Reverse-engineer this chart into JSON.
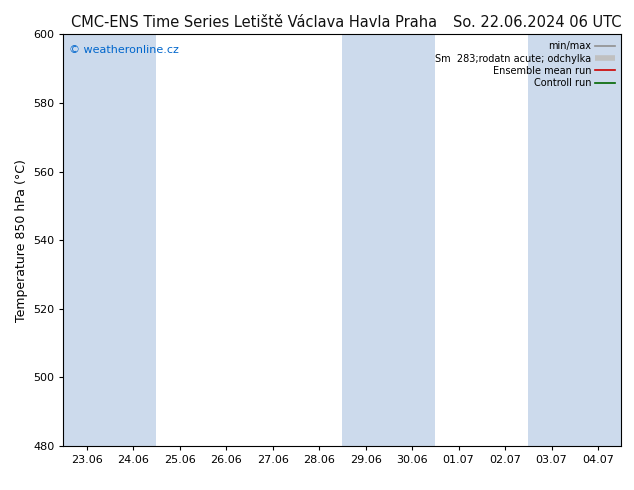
{
  "title": "CMC-ENS Time Series Letiště Václava Havla Praha",
  "date_label": "So. 22.06.2024 06 UTC",
  "ylabel": "Temperature 850 hPa (°C)",
  "ylim": [
    480,
    600
  ],
  "yticks": [
    480,
    500,
    520,
    540,
    560,
    580,
    600
  ],
  "x_labels": [
    "23.06",
    "24.06",
    "25.06",
    "26.06",
    "27.06",
    "28.06",
    "29.06",
    "30.06",
    "01.07",
    "02.07",
    "03.07",
    "04.07"
  ],
  "copyright": "© weatheronline.cz",
  "legend_entries": [
    "min/max",
    "Sm  283;rodatn acute; odchylka",
    "Ensemble mean run",
    "Controll run"
  ],
  "legend_line_colors": [
    "#909090",
    "#c0c0c0",
    "#cc0000",
    "#006600"
  ],
  "background_color": "#ffffff",
  "plot_bg_color": "#ffffff",
  "shaded_indices": [
    0,
    1,
    6,
    7,
    10,
    11
  ],
  "shaded_color": "#ccdaec",
  "grid_color": "#cccccc",
  "title_fontsize": 10.5,
  "tick_fontsize": 8,
  "ylabel_fontsize": 9,
  "copyright_color": "#0066cc",
  "border_color": "#000000"
}
